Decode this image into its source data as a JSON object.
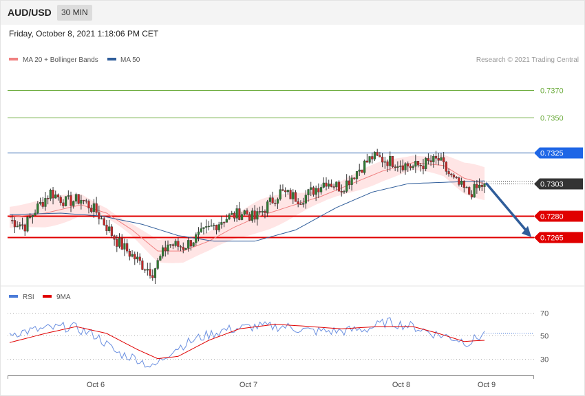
{
  "header": {
    "symbol": "AUD/USD",
    "timeframe": "30 MIN",
    "datetime": "Friday, October 8, 2021 1:18:06 PM CET"
  },
  "legend": {
    "items": [
      {
        "label": "MA 20 + Bollinger Bands",
        "color": "#f08080"
      },
      {
        "label": "MA 50",
        "color": "#2f5d9a"
      }
    ],
    "copyright": "Research © 2021 Trading Central"
  },
  "rsi_legend": {
    "items": [
      {
        "label": "RSI",
        "color": "#4a7bd8"
      },
      {
        "label": "9MA",
        "color": "#e00000"
      }
    ]
  },
  "colors": {
    "bull": "#2e7d32",
    "bear": "#c62828",
    "support": "#e00000",
    "resistance_target": "#6aaa3a",
    "resistance_main": "#1e66e6",
    "current": "#333333",
    "arrow": "#2f5d9a",
    "band": "#ffe0e0"
  },
  "chart_data": [
    {
      "type": "candlestick",
      "y_range": [
        0.7232,
        0.7385
      ],
      "x_ticks": [
        "Oct 6",
        "Oct 7",
        "Oct 8",
        "Oct 9"
      ],
      "levels": [
        {
          "label": "0.7370",
          "value": 0.737,
          "role": "target"
        },
        {
          "label": "0.7350",
          "value": 0.735,
          "role": "target"
        },
        {
          "label": "0.7325",
          "value": 0.7325,
          "role": "resistance"
        },
        {
          "label": "0.7303",
          "value": 0.7303,
          "role": "current"
        },
        {
          "label": "0.7280",
          "value": 0.728,
          "role": "support"
        },
        {
          "label": "0.7265",
          "value": 0.7265,
          "role": "support"
        }
      ],
      "forecast": {
        "from": 0.7303,
        "to": 0.7265,
        "direction": "down"
      },
      "anchors": [
        [
          0,
          0.7277
        ],
        [
          6,
          0.7273
        ],
        [
          10,
          0.7284
        ],
        [
          16,
          0.7297
        ],
        [
          22,
          0.729
        ],
        [
          28,
          0.7292
        ],
        [
          34,
          0.7283
        ],
        [
          42,
          0.7262
        ],
        [
          52,
          0.7245
        ],
        [
          56,
          0.724
        ],
        [
          62,
          0.726
        ],
        [
          68,
          0.7258
        ],
        [
          76,
          0.7268
        ],
        [
          84,
          0.7278
        ],
        [
          92,
          0.7283
        ],
        [
          96,
          0.7278
        ],
        [
          106,
          0.7297
        ],
        [
          114,
          0.7292
        ],
        [
          124,
          0.7305
        ],
        [
          130,
          0.73
        ],
        [
          136,
          0.7312
        ],
        [
          142,
          0.7322
        ],
        [
          152,
          0.7318
        ],
        [
          158,
          0.7315
        ],
        [
          168,
          0.732
        ],
        [
          174,
          0.7305
        ],
        [
          180,
          0.7296
        ],
        [
          186,
          0.7303
        ]
      ],
      "ma20": [
        [
          0,
          0.7279
        ],
        [
          14,
          0.7282
        ],
        [
          28,
          0.7288
        ],
        [
          38,
          0.7282
        ],
        [
          48,
          0.727
        ],
        [
          58,
          0.7255
        ],
        [
          68,
          0.7255
        ],
        [
          78,
          0.7262
        ],
        [
          88,
          0.7272
        ],
        [
          98,
          0.728
        ],
        [
          110,
          0.7287
        ],
        [
          122,
          0.7294
        ],
        [
          134,
          0.7303
        ],
        [
          146,
          0.7312
        ],
        [
          158,
          0.7318
        ],
        [
          170,
          0.7316
        ],
        [
          178,
          0.7307
        ],
        [
          186,
          0.7303
        ]
      ],
      "ma50": [
        [
          0,
          0.7281
        ],
        [
          20,
          0.7282
        ],
        [
          36,
          0.728
        ],
        [
          52,
          0.7274
        ],
        [
          66,
          0.7266
        ],
        [
          80,
          0.7262
        ],
        [
          96,
          0.7262
        ],
        [
          112,
          0.727
        ],
        [
          128,
          0.7286
        ],
        [
          142,
          0.7297
        ],
        [
          156,
          0.7303
        ],
        [
          170,
          0.7304
        ],
        [
          186,
          0.7305
        ]
      ],
      "band_width": 0.00075
    },
    {
      "type": "line",
      "y_range": [
        19,
        76
      ],
      "y_ticks": [
        "70",
        "50",
        "30"
      ],
      "series": [
        {
          "name": "RSI",
          "values": [
            [
              0,
              52
            ],
            [
              14,
              56
            ],
            [
              24,
              58
            ],
            [
              34,
              50
            ],
            [
              42,
              35
            ],
            [
              50,
              30
            ],
            [
              56,
              22
            ],
            [
              64,
              38
            ],
            [
              74,
              48
            ],
            [
              84,
              55
            ],
            [
              96,
              58
            ],
            [
              108,
              58
            ],
            [
              118,
              54
            ],
            [
              130,
              54
            ],
            [
              140,
              56
            ],
            [
              148,
              62
            ],
            [
              158,
              58
            ],
            [
              166,
              52
            ],
            [
              174,
              48
            ],
            [
              180,
              44
            ],
            [
              186,
              52
            ]
          ]
        },
        {
          "name": "9MA",
          "values": [
            [
              0,
              44
            ],
            [
              14,
              52
            ],
            [
              26,
              58
            ],
            [
              38,
              52
            ],
            [
              50,
              38
            ],
            [
              58,
              30
            ],
            [
              66,
              32
            ],
            [
              78,
              46
            ],
            [
              90,
              56
            ],
            [
              104,
              60
            ],
            [
              118,
              58
            ],
            [
              130,
              56
            ],
            [
              144,
              58
            ],
            [
              158,
              58
            ],
            [
              168,
              52
            ],
            [
              178,
              45
            ],
            [
              186,
              46
            ]
          ]
        }
      ]
    }
  ]
}
